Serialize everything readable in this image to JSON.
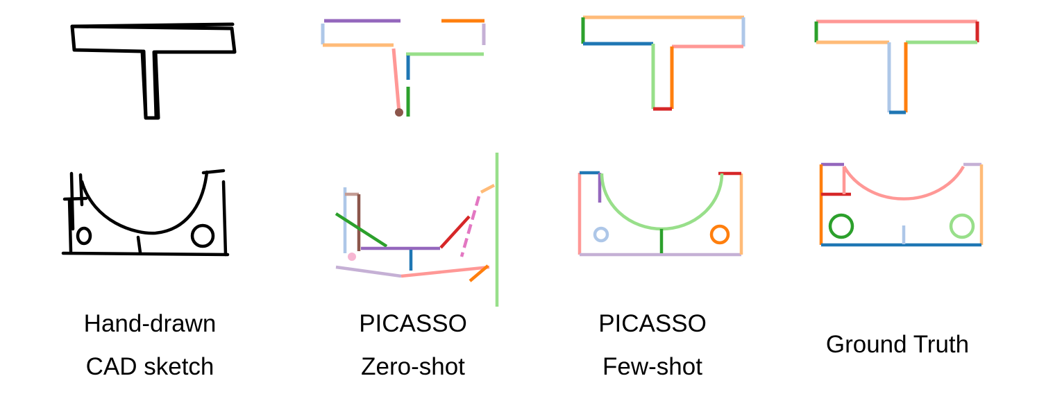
{
  "columns": [
    {
      "id": "hand-drawn",
      "caption_lines": [
        "Hand-drawn",
        "CAD sketch"
      ]
    },
    {
      "id": "picasso-zero-shot",
      "caption_lines": [
        "PICASSO",
        "Zero-shot"
      ]
    },
    {
      "id": "picasso-few-shot",
      "caption_lines": [
        "PICASSO",
        "Few-shot"
      ]
    },
    {
      "id": "ground-truth",
      "caption_lines": [
        "Ground Truth"
      ]
    }
  ],
  "rows": [
    {
      "id": "t-shape",
      "description_shown": ""
    },
    {
      "id": "u-bracket",
      "description_shown": ""
    }
  ],
  "palette": {
    "sketch": "#000000",
    "blue": "#1f77b4",
    "light_blue": "#aec7e8",
    "orange": "#ff7f0e",
    "light_orange": "#ffbb78",
    "green": "#2ca02c",
    "light_green": "#98df8a",
    "red": "#d62728",
    "pink": "#ff9896",
    "purple": "#9467bd",
    "light_purple": "#c5b0d5",
    "brown": "#8c564b",
    "magenta": "#e377c2",
    "light_magenta": "#f7b6d2"
  }
}
